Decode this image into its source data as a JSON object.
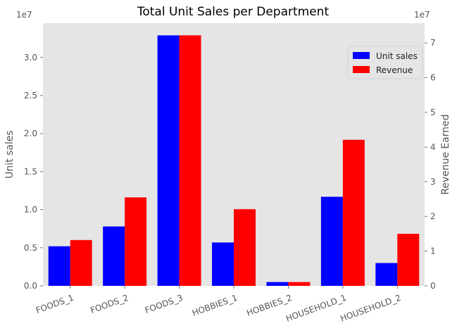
{
  "chart_data": {
    "type": "bar",
    "title": "Total Unit Sales per Department",
    "categories": [
      "FOODS_1",
      "FOODS_2",
      "FOODS_3",
      "HOBBIES_1",
      "HOBBIES_2",
      "HOUSEHOLD_1",
      "HOUSEHOLD_2"
    ],
    "series": [
      {
        "name": "Unit sales",
        "axis": "left",
        "color": "#0000ff",
        "values": [
          5200000,
          7800000,
          32900000,
          5700000,
          500000,
          11700000,
          3000000
        ]
      },
      {
        "name": "Revenue",
        "axis": "right",
        "color": "#ff0000",
        "values": [
          13200000,
          25500000,
          72200000,
          22100000,
          1100000,
          42100000,
          15000000
        ]
      }
    ],
    "ylabel": "Unit sales",
    "ylabel_right": "Revenue Earned",
    "ylim": [
      0,
      34500000
    ],
    "ylim_right": [
      0,
      75700000
    ],
    "yticks": [
      "0.0",
      "0.5",
      "1.0",
      "1.5",
      "2.0",
      "2.5",
      "3.0"
    ],
    "yticks_right": [
      "0",
      "1",
      "2",
      "3",
      "4",
      "5",
      "6",
      "7"
    ],
    "y_exponent": "1e7",
    "y_exponent_right": "1e7",
    "grid": false,
    "legend": "top-right",
    "background": "#e5e5e5"
  }
}
